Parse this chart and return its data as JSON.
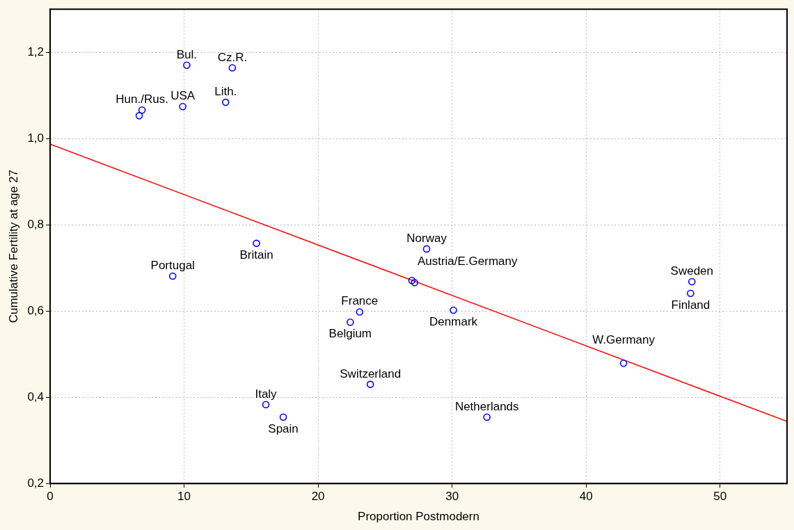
{
  "chart_data": {
    "type": "scatter",
    "xlabel": "Proportion Postmodern",
    "ylabel": "Cumulative Fertility at age 27",
    "xlim": [
      0,
      55
    ],
    "xticks": [
      0,
      10,
      20,
      30,
      40,
      50
    ],
    "ylim": [
      0.2,
      1.3
    ],
    "yticks": [
      {
        "value": 0.2,
        "label": "0,2"
      },
      {
        "value": 0.4,
        "label": "0,4"
      },
      {
        "value": 0.6,
        "label": "0,6"
      },
      {
        "value": 0.8,
        "label": "0,8"
      },
      {
        "value": 1.0,
        "label": "1,0"
      },
      {
        "value": 1.2,
        "label": "1,2"
      }
    ],
    "grid": true,
    "legend": false,
    "series": [
      {
        "type": "scatter",
        "color": "#0000ff",
        "marker": "circle",
        "x": [
          6.65,
          6.86,
          9.9,
          10.2,
          13.6,
          13.1,
          15.4,
          9.15,
          16.1,
          17.4,
          23.9,
          22.4,
          23.1,
          27.0,
          27.2,
          28.1,
          30.1,
          32.6,
          42.8,
          47.9,
          47.8
        ],
        "values": [
          1.053,
          1.066,
          1.074,
          1.17,
          1.164,
          1.084,
          0.757,
          0.681,
          0.383,
          0.354,
          0.43,
          0.574,
          0.598,
          0.671,
          0.666,
          0.744,
          0.602,
          0.354,
          0.479,
          0.668,
          0.641
        ]
      },
      {
        "type": "line",
        "color": "#ff0000",
        "marker": "none",
        "line_style": "solid",
        "x": [
          0,
          55
        ],
        "values": [
          0.987,
          0.344
        ]
      }
    ],
    "annotations": [
      {
        "text": "Hun./Rus.",
        "x": 6.86,
        "y": 1.066
      },
      {
        "text": "USA",
        "x": 9.9,
        "y": 1.074
      },
      {
        "text": "Bul.",
        "x": 10.2,
        "y": 1.17
      },
      {
        "text": "Cz.R.",
        "x": 13.6,
        "y": 1.164
      },
      {
        "text": "Lith.",
        "x": 13.1,
        "y": 1.084
      },
      {
        "text": "Britain",
        "x": 15.4,
        "y": 0.757
      },
      {
        "text": "Portugal",
        "x": 9.15,
        "y": 0.681
      },
      {
        "text": "Italy",
        "x": 16.1,
        "y": 0.383
      },
      {
        "text": "Spain",
        "x": 17.4,
        "y": 0.354
      },
      {
        "text": "Switzerland",
        "x": 23.9,
        "y": 0.43
      },
      {
        "text": "Belgium",
        "x": 22.4,
        "y": 0.574
      },
      {
        "text": "France",
        "x": 23.1,
        "y": 0.598
      },
      {
        "text": "Austria/E.Germany",
        "x": 27.0,
        "y": 0.671
      },
      {
        "text": "Norway",
        "x": 28.1,
        "y": 0.744
      },
      {
        "text": "Denmark",
        "x": 30.1,
        "y": 0.602
      },
      {
        "text": "Netherlands",
        "x": 32.6,
        "y": 0.354
      },
      {
        "text": "W.Germany",
        "x": 42.8,
        "y": 0.479
      },
      {
        "text": "Sweden",
        "x": 47.9,
        "y": 0.668
      },
      {
        "text": "Finland",
        "x": 47.8,
        "y": 0.641
      }
    ]
  }
}
